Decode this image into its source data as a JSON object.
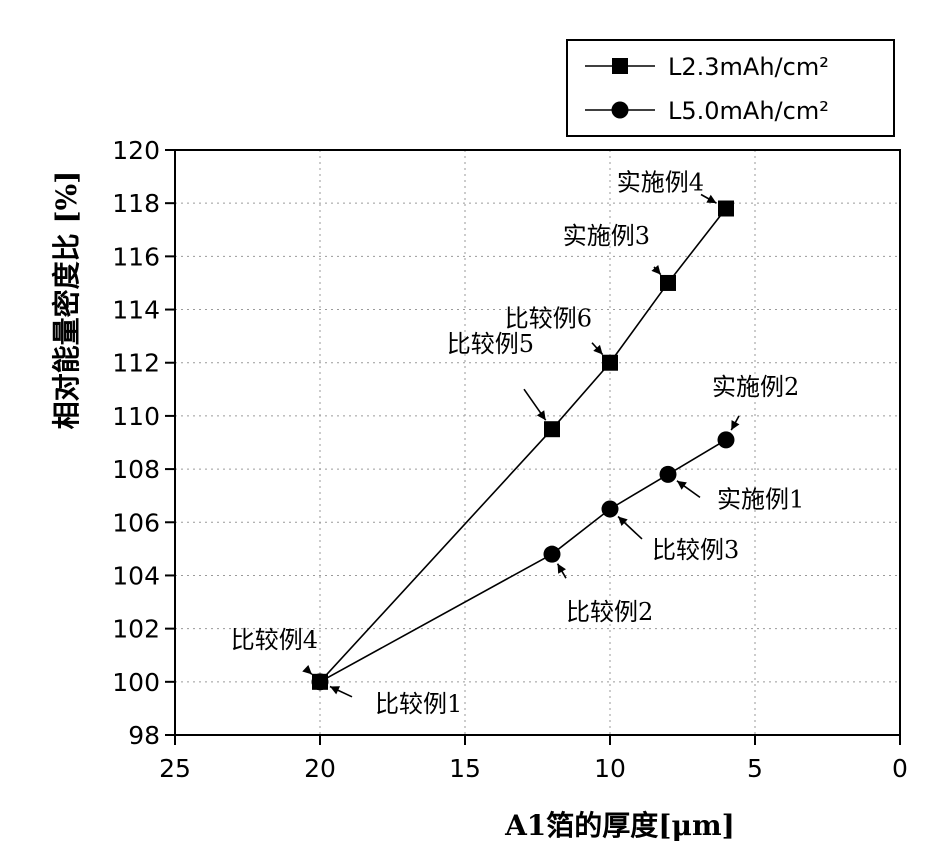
{
  "chart_data": {
    "type": "line",
    "title": "",
    "xlabel": "A1箔的厚度[μm]",
    "ylabel": "相对能量密度比 [%]",
    "xlim": [
      25,
      0
    ],
    "ylim": [
      98,
      120
    ],
    "x_ticks": [
      25,
      20,
      15,
      10,
      5,
      0
    ],
    "y_ticks": [
      98,
      100,
      102,
      104,
      106,
      108,
      110,
      112,
      114,
      116,
      118,
      120
    ],
    "grid": true,
    "legend_position": "top-right",
    "series": [
      {
        "name": "L2.3mAh/cm²",
        "marker": "square",
        "x": [
          20,
          12,
          10,
          8,
          6
        ],
        "y": [
          100,
          109.5,
          112,
          115,
          117.8
        ],
        "point_labels": [
          "比较例4",
          "比较例5",
          "比较例6",
          "实施例3",
          "实施例4"
        ]
      },
      {
        "name": "L5.0mAh/cm²",
        "marker": "circle",
        "x": [
          20,
          12,
          10,
          8,
          6
        ],
        "y": [
          100,
          104.8,
          106.5,
          107.8,
          109.1
        ],
        "point_labels": [
          "比较例1",
          "比较例2",
          "比较例3",
          "实施例1",
          "实施例2"
        ]
      }
    ]
  }
}
